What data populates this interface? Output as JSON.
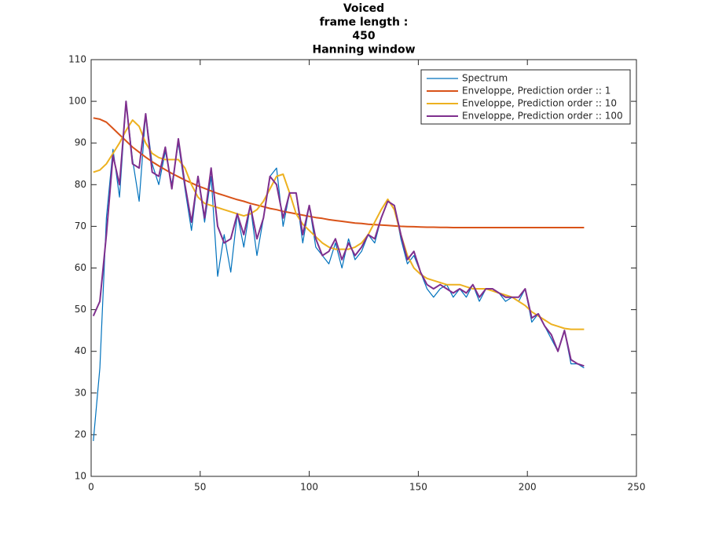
{
  "chart_data": {
    "type": "line",
    "title": [
      "Voiced",
      "frame length :",
      "450",
      "Hanning window"
    ],
    "x": [
      1,
      4,
      7,
      10,
      13,
      16,
      19,
      22,
      25,
      28,
      31,
      34,
      37,
      40,
      43,
      46,
      49,
      52,
      55,
      58,
      61,
      64,
      67,
      70,
      73,
      76,
      79,
      82,
      85,
      88,
      91,
      94,
      97,
      100,
      103,
      106,
      109,
      112,
      115,
      118,
      121,
      124,
      127,
      130,
      133,
      136,
      139,
      142,
      145,
      148,
      151,
      154,
      157,
      160,
      163,
      166,
      169,
      172,
      175,
      178,
      181,
      184,
      187,
      190,
      193,
      196,
      199,
      202,
      205,
      208,
      211,
      214,
      217,
      220,
      223,
      226
    ],
    "series": [
      {
        "name": "Spectrum",
        "color": "#0072bd",
        "values": [
          18.5,
          36,
          72,
          88.5,
          77,
          100,
          86,
          76,
          97,
          85,
          80,
          88,
          80,
          90,
          79,
          69,
          82,
          71,
          82,
          58,
          68,
          59,
          73,
          65,
          75,
          63,
          72,
          82,
          84,
          70,
          78,
          78,
          66,
          75,
          65,
          63,
          61,
          66,
          60,
          67,
          62,
          64,
          68,
          66,
          72,
          76,
          75,
          67,
          61,
          63,
          59,
          55,
          53,
          55,
          56,
          53,
          55,
          53,
          56,
          52,
          55,
          55,
          54,
          52,
          53,
          52,
          55,
          47,
          49,
          46,
          43,
          40,
          45,
          37,
          37,
          36
        ]
      },
      {
        "name": "Enveloppe, Prediction order :: 1",
        "color": "#d95319",
        "values": [
          96,
          95.7,
          95,
          93.5,
          92,
          90.5,
          89,
          87.8,
          86.6,
          85.5,
          84.5,
          83.6,
          82.7,
          81.9,
          81.1,
          80.4,
          79.7,
          79.1,
          78.5,
          77.9,
          77.4,
          76.9,
          76.4,
          76,
          75.5,
          75.1,
          74.7,
          74.3,
          74,
          73.6,
          73.3,
          73,
          72.7,
          72.4,
          72.1,
          71.9,
          71.6,
          71.4,
          71.2,
          71,
          70.8,
          70.7,
          70.5,
          70.4,
          70.3,
          70.2,
          70.1,
          70,
          69.95,
          69.9,
          69.85,
          69.8,
          69.8,
          69.75,
          69.75,
          69.7,
          69.7,
          69.7,
          69.7,
          69.7,
          69.7,
          69.7,
          69.7,
          69.7,
          69.7,
          69.7,
          69.7,
          69.7,
          69.7,
          69.7,
          69.7,
          69.7,
          69.7,
          69.7,
          69.7,
          69.7
        ]
      },
      {
        "name": "Enveloppe, Prediction order :: 10",
        "color": "#edb120",
        "values": [
          83,
          83.5,
          85,
          87.5,
          90,
          93,
          95.5,
          94,
          90,
          87.5,
          86.5,
          86,
          86,
          86,
          84,
          80,
          77,
          75.5,
          75,
          74.5,
          74,
          73.5,
          73,
          72.5,
          73,
          74,
          76,
          79,
          82,
          82.5,
          78,
          73,
          70.5,
          69,
          67.5,
          66,
          65,
          64.5,
          64.5,
          64.5,
          65,
          66,
          68,
          71,
          74,
          76.5,
          74,
          68,
          63,
          60,
          58.5,
          57.5,
          57,
          56.5,
          56,
          56,
          56,
          55.5,
          55,
          55,
          55,
          54.5,
          54,
          53.5,
          53,
          52,
          51,
          49.5,
          48.5,
          47.5,
          46.5,
          46,
          45.5,
          45.3,
          45.3,
          45.3
        ]
      },
      {
        "name": "Enveloppe, Prediction order :: 100",
        "color": "#7e2f8e",
        "values": [
          48.5,
          52,
          68,
          87,
          80,
          100,
          85,
          84,
          97,
          83,
          82,
          89,
          79,
          91,
          80,
          71,
          82,
          72,
          84,
          70,
          66,
          67,
          73,
          68,
          75,
          67,
          72,
          82,
          80,
          72,
          78,
          78,
          68,
          75,
          67,
          63,
          64,
          67,
          62,
          66,
          63,
          65,
          68,
          67,
          72,
          76,
          75,
          68,
          62,
          64,
          59,
          56,
          55,
          56,
          55,
          54,
          55,
          54,
          56,
          53,
          55,
          55,
          54,
          53,
          53,
          53,
          55,
          48,
          49,
          46,
          44,
          40,
          45,
          38,
          37,
          36.5
        ]
      }
    ],
    "xlim": [
      0,
      250
    ],
    "xticks": [
      0,
      50,
      100,
      150,
      200,
      250
    ],
    "ylim": [
      10,
      110
    ],
    "yticks": [
      10,
      20,
      30,
      40,
      50,
      60,
      70,
      80,
      90,
      100,
      110
    ],
    "legend": "northeast"
  }
}
